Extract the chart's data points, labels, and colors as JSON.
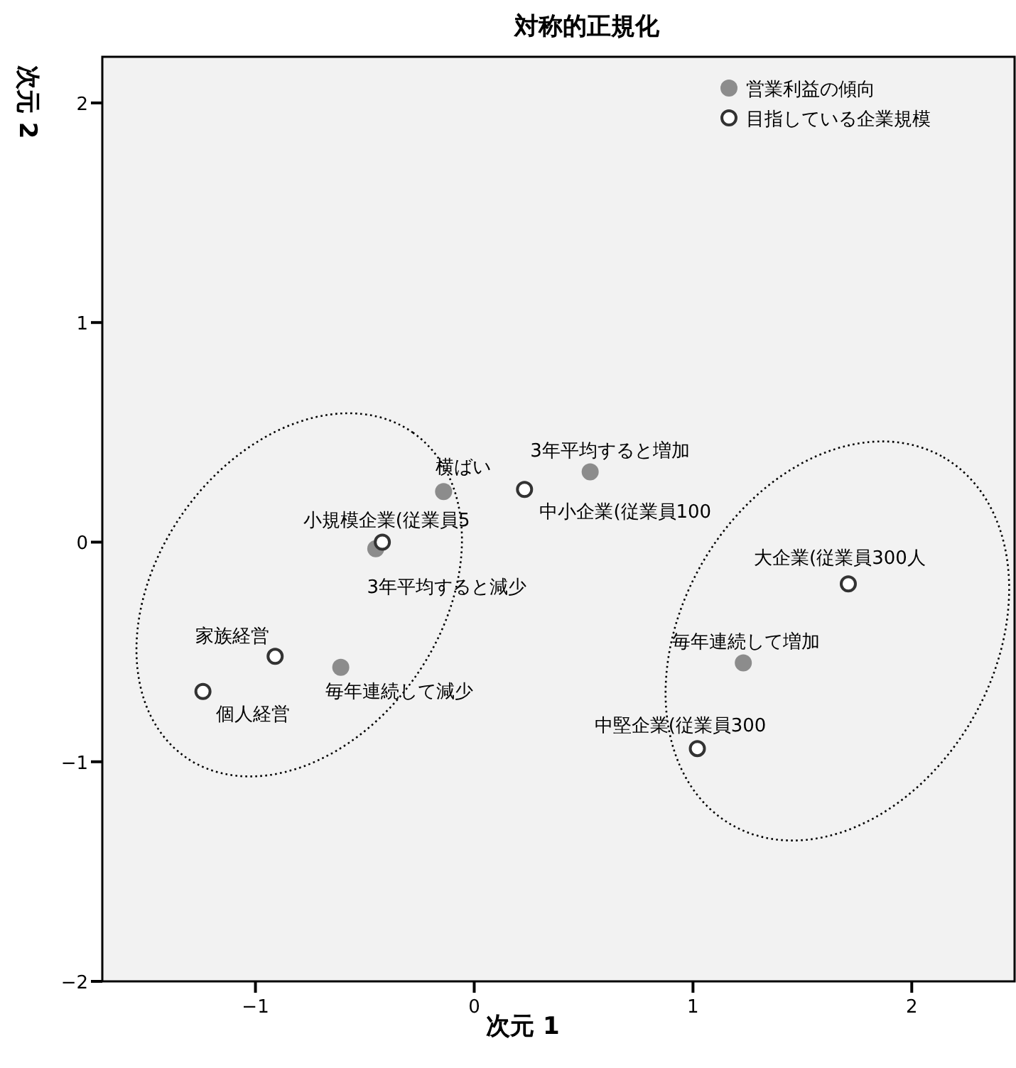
{
  "chart_data": {
    "type": "scatter",
    "title": "対称的正規化",
    "xlabel": "次元 1",
    "ylabel": "次元 2",
    "xlim": [
      -1.7,
      2.47
    ],
    "ylim": [
      -2,
      2.21
    ],
    "xticks": [
      {
        "value": -1,
        "label": "−1"
      },
      0,
      1,
      2
    ],
    "yticks": [
      {
        "value": -2,
        "label": "−2"
      },
      {
        "value": -1,
        "label": "−1"
      },
      0,
      1,
      2
    ],
    "grid": false,
    "legend": "top right",
    "marker": "circle",
    "series": [
      {
        "name": "営業利益の傾向",
        "color": "#8c8c8c",
        "x": [
          -0.14,
          0.53,
          -0.45,
          -0.61,
          1.23
        ],
        "values": [
          0.23,
          0.32,
          -0.03,
          -0.57,
          -0.55
        ]
      },
      {
        "name": "目指している企業規模",
        "color": "#ffffff",
        "x": [
          -0.42,
          0.23,
          -0.91,
          -1.24,
          1.71,
          1.02
        ],
        "values": [
          0.0,
          0.24,
          -0.52,
          -0.68,
          -0.19,
          -0.94
        ]
      }
    ],
    "annotations": [
      {
        "text": "横ばい",
        "x": -0.14,
        "y": 0.23
      },
      {
        "text": "3年平均すると増加",
        "x": 0.53,
        "y": 0.32
      },
      {
        "text": "3年平均すると減少",
        "x": -0.45,
        "y": -0.03
      },
      {
        "text": "毎年連続して減少",
        "x": -0.61,
        "y": -0.57
      },
      {
        "text": "毎年連続して増加",
        "x": 1.23,
        "y": -0.55
      },
      {
        "text": "小規模企業(従業員5",
        "x": -0.42,
        "y": 0.0
      },
      {
        "text": "中小企業(従業員100",
        "x": 0.23,
        "y": 0.24
      },
      {
        "text": "家族経営",
        "x": -0.91,
        "y": -0.52
      },
      {
        "text": "個人経営",
        "x": -1.24,
        "y": -0.68
      },
      {
        "text": "大企業(従業員300人",
        "x": 1.71,
        "y": -0.19
      },
      {
        "text": "中堅企業(従業員300",
        "x": 1.02,
        "y": -0.94
      }
    ]
  }
}
